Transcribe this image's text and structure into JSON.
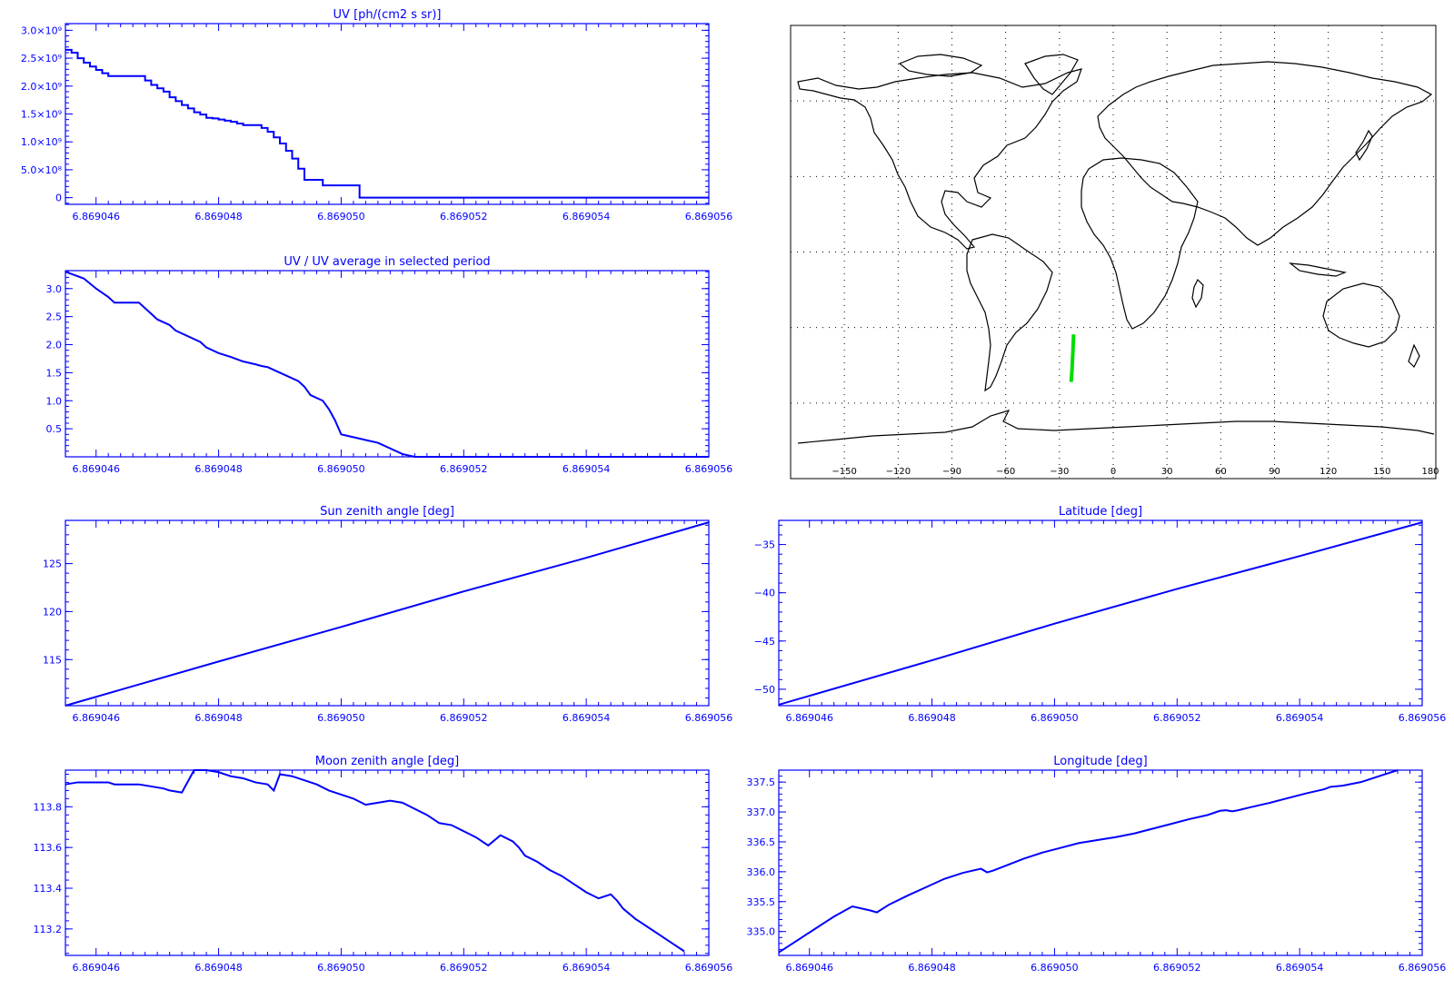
{
  "colors": {
    "axis": "#0000ff",
    "series": "#0000ff",
    "map_outline": "#000000",
    "track": "#00dd00",
    "background": "#ffffff"
  },
  "chart_data": [
    {
      "id": "uv",
      "type": "line",
      "title": "UV [ph/(cm2 s sr)]",
      "xlabel": "",
      "ylabel": "",
      "step": true,
      "xlim": [
        6.8690455,
        6.869056
      ],
      "ylim": [
        -120000000.0,
        3120000000.0
      ],
      "xticks": [
        "6.869046",
        "6.869048",
        "6.869050",
        "6.869052",
        "6.869054",
        "6.869056"
      ],
      "yticks": [
        {
          "v": 0,
          "label": "0"
        },
        {
          "v": 500000000.0,
          "label": "5.0×10⁸"
        },
        {
          "v": 1000000000.0,
          "label": "1.0×10⁹"
        },
        {
          "v": 1500000000.0,
          "label": "1.5×10⁹"
        },
        {
          "v": 2000000000.0,
          "label": "2.0×10⁹"
        },
        {
          "v": 2500000000.0,
          "label": "2.5×10⁹"
        },
        {
          "v": 3000000000.0,
          "label": "3.0×10⁹"
        }
      ],
      "series": [
        {
          "x": [
            6.8690455,
            6.8690456,
            6.8690457,
            6.8690458,
            6.8690459,
            6.869046,
            6.8690461,
            6.8690462,
            6.8690463,
            6.8690464,
            6.8690465,
            6.8690466,
            6.8690467,
            6.8690468,
            6.8690469,
            6.869047,
            6.8690471,
            6.8690472,
            6.8690473,
            6.8690474,
            6.8690475,
            6.8690476,
            6.8690477,
            6.8690478,
            6.8690479,
            6.869048,
            6.8690481,
            6.8690482,
            6.8690483,
            6.8690484,
            6.8690485,
            6.8690486,
            6.8690487,
            6.8690488,
            6.8690489,
            6.869049,
            6.8690491,
            6.8690492,
            6.8690493,
            6.8690494,
            6.8690495,
            6.8690496,
            6.8690497,
            6.8690498,
            6.8690499,
            6.86905,
            6.8690501,
            6.8690502,
            6.8690503,
            6.8690504,
            6.8690505,
            6.8690506,
            6.8690507,
            6.8690508,
            6.8690509,
            6.869051,
            6.869056
          ],
          "y": [
            2650000000.0,
            2600000000.0,
            2500000000.0,
            2420000000.0,
            2350000000.0,
            2290000000.0,
            2230000000.0,
            2180000000.0,
            2180000000.0,
            2180000000.0,
            2180000000.0,
            2180000000.0,
            2180000000.0,
            2100000000.0,
            2020000000.0,
            1960000000.0,
            1900000000.0,
            1800000000.0,
            1730000000.0,
            1660000000.0,
            1600000000.0,
            1530000000.0,
            1490000000.0,
            1430000000.0,
            1420000000.0,
            1400000000.0,
            1380000000.0,
            1360000000.0,
            1330000000.0,
            1300000000.0,
            1300000000.0,
            1300000000.0,
            1250000000.0,
            1180000000.0,
            1080000000.0,
            970000000.0,
            840000000.0,
            700000000.0,
            520000000.0,
            320000000.0,
            320000000.0,
            320000000.0,
            220000000.0,
            220000000.0,
            220000000.0,
            220000000.0,
            220000000.0,
            220000000.0,
            0.0,
            0.0,
            0.0,
            0.0,
            0.0,
            0.0,
            0.0,
            0.0,
            0.0
          ]
        }
      ]
    },
    {
      "id": "uv-ratio",
      "type": "line",
      "title": "UV / UV average in selected period",
      "xlabel": "",
      "ylabel": "",
      "xlim": [
        6.8690455,
        6.869056
      ],
      "ylim": [
        0.0,
        3.32
      ],
      "xticks": [
        "6.869046",
        "6.869048",
        "6.869050",
        "6.869052",
        "6.869054",
        "6.869056"
      ],
      "yticks": [
        {
          "v": 0.5,
          "label": "0.5"
        },
        {
          "v": 1.0,
          "label": "1.0"
        },
        {
          "v": 1.5,
          "label": "1.5"
        },
        {
          "v": 2.0,
          "label": "2.0"
        },
        {
          "v": 2.5,
          "label": "2.5"
        },
        {
          "v": 3.0,
          "label": "3.0"
        }
      ],
      "series": [
        {
          "x": [
            6.8690455,
            6.8690458,
            6.869046,
            6.8690462,
            6.8690463,
            6.8690465,
            6.8690467,
            6.8690468,
            6.8690469,
            6.869047,
            6.8690472,
            6.8690473,
            6.8690475,
            6.8690477,
            6.8690478,
            6.869048,
            6.8690482,
            6.8690484,
            6.8690486,
            6.8690487,
            6.8690488,
            6.8690489,
            6.8690491,
            6.8690493,
            6.8690494,
            6.8690495,
            6.8690497,
            6.8690498,
            6.8690499,
            6.86905,
            6.8690504,
            6.8690506,
            6.869051,
            6.8690512,
            6.869056
          ],
          "y": [
            3.3,
            3.18,
            3.0,
            2.85,
            2.75,
            2.75,
            2.75,
            2.65,
            2.55,
            2.45,
            2.35,
            2.25,
            2.15,
            2.05,
            1.95,
            1.85,
            1.78,
            1.7,
            1.65,
            1.62,
            1.6,
            1.55,
            1.45,
            1.35,
            1.25,
            1.1,
            1.0,
            0.85,
            0.65,
            0.4,
            0.3,
            0.25,
            0.05,
            0.0,
            0.0
          ]
        }
      ]
    },
    {
      "id": "sun-zenith",
      "type": "line",
      "title": "Sun zenith angle [deg]",
      "xlabel": "",
      "ylabel": "",
      "xlim": [
        6.8690455,
        6.869056
      ],
      "ylim": [
        110.2,
        129.5
      ],
      "xticks": [
        "6.869046",
        "6.869048",
        "6.869050",
        "6.869052",
        "6.869054",
        "6.869056"
      ],
      "yticks": [
        {
          "v": 115,
          "label": "115"
        },
        {
          "v": 120,
          "label": "120"
        },
        {
          "v": 125,
          "label": "125"
        }
      ],
      "series": [
        {
          "x": [
            6.8690455,
            6.869048,
            6.86905,
            6.869052,
            6.869054,
            6.869056
          ],
          "y": [
            110.2,
            114.8,
            118.4,
            122.1,
            125.6,
            129.3
          ]
        }
      ]
    },
    {
      "id": "latitude",
      "type": "line",
      "title": "Latitude [deg]",
      "xlabel": "",
      "ylabel": "",
      "xlim": [
        6.8690455,
        6.869056
      ],
      "ylim": [
        -51.7,
        -32.5
      ],
      "xticks": [
        "6.869046",
        "6.869048",
        "6.869050",
        "6.869052",
        "6.869054",
        "6.869056"
      ],
      "yticks": [
        {
          "v": -50,
          "label": "−50"
        },
        {
          "v": -45,
          "label": "−45"
        },
        {
          "v": -40,
          "label": "−40"
        },
        {
          "v": -35,
          "label": "−35"
        }
      ],
      "series": [
        {
          "x": [
            6.8690455,
            6.869048,
            6.86905,
            6.869052,
            6.869054,
            6.869056
          ],
          "y": [
            -51.6,
            -47.0,
            -43.2,
            -39.6,
            -36.2,
            -32.7
          ]
        }
      ]
    },
    {
      "id": "moon-zenith",
      "type": "line",
      "title": "Moon zenith angle [deg]",
      "xlabel": "",
      "ylabel": "",
      "xlim": [
        6.8690455,
        6.869056
      ],
      "ylim": [
        113.07,
        113.98
      ],
      "xticks": [
        "6.869046",
        "6.869048",
        "6.869050",
        "6.869052",
        "6.869054",
        "6.869056"
      ],
      "yticks": [
        {
          "v": 113.2,
          "label": "113.2"
        },
        {
          "v": 113.4,
          "label": "113.4"
        },
        {
          "v": 113.6,
          "label": "113.6"
        },
        {
          "v": 113.8,
          "label": "113.8"
        }
      ],
      "series": [
        {
          "x": [
            6.8690455,
            6.8690457,
            6.869046,
            6.8690462,
            6.8690463,
            6.8690466,
            6.8690467,
            6.8690471,
            6.8690472,
            6.8690474,
            6.8690476,
            6.8690478,
            6.869048,
            6.8690482,
            6.8690484,
            6.8690486,
            6.8690488,
            6.8690489,
            6.869049,
            6.8690492,
            6.8690494,
            6.8690496,
            6.8690498,
            6.86905,
            6.8690502,
            6.8690504,
            6.8690506,
            6.8690508,
            6.869051,
            6.8690512,
            6.8690514,
            6.8690516,
            6.8690518,
            6.869052,
            6.8690522,
            6.8690524,
            6.8690526,
            6.8690528,
            6.8690529,
            6.869053,
            6.8690532,
            6.8690534,
            6.8690536,
            6.8690538,
            6.869054,
            6.8690542,
            6.8690544,
            6.8690545,
            6.8690546,
            6.8690548,
            6.869055,
            6.8690552,
            6.8690554,
            6.8690556
          ],
          "y": [
            113.91,
            113.92,
            113.92,
            113.92,
            113.91,
            113.91,
            113.91,
            113.89,
            113.88,
            113.87,
            113.98,
            113.98,
            113.97,
            113.95,
            113.94,
            113.92,
            113.91,
            113.88,
            113.96,
            113.95,
            113.93,
            113.91,
            113.88,
            113.86,
            113.84,
            113.81,
            113.82,
            113.83,
            113.82,
            113.79,
            113.76,
            113.72,
            113.71,
            113.68,
            113.65,
            113.61,
            113.66,
            113.63,
            113.6,
            113.56,
            113.53,
            113.49,
            113.46,
            113.42,
            113.38,
            113.35,
            113.37,
            113.34,
            113.3,
            113.25,
            113.21,
            113.17,
            113.13,
            113.09
          ]
        }
      ]
    },
    {
      "id": "longitude",
      "type": "line",
      "title": "Longitude [deg]",
      "xlabel": "",
      "ylabel": "",
      "xlim": [
        6.8690455,
        6.869056
      ],
      "ylim": [
        334.6,
        337.7
      ],
      "xticks": [
        "6.869046",
        "6.869048",
        "6.869050",
        "6.869052",
        "6.869054",
        "6.869056"
      ],
      "yticks": [
        {
          "v": 335.0,
          "label": "335.0"
        },
        {
          "v": 335.5,
          "label": "335.5"
        },
        {
          "v": 336.0,
          "label": "336.0"
        },
        {
          "v": 336.5,
          "label": "336.5"
        },
        {
          "v": 337.0,
          "label": "337.0"
        },
        {
          "v": 337.5,
          "label": "337.5"
        }
      ],
      "series": [
        {
          "x": [
            6.8690455,
            6.8690458,
            6.8690461,
            6.8690464,
            6.8690467,
            6.869047,
            6.8690471,
            6.8690473,
            6.8690476,
            6.8690479,
            6.8690482,
            6.8690485,
            6.8690488,
            6.8690489,
            6.869049,
            6.8690492,
            6.8690495,
            6.8690498,
            6.8690501,
            6.8690504,
            6.8690507,
            6.869051,
            6.8690513,
            6.8690516,
            6.8690519,
            6.8690522,
            6.8690525,
            6.8690527,
            6.8690528,
            6.8690529,
            6.869053,
            6.8690532,
            6.8690535,
            6.8690538,
            6.8690541,
            6.8690544,
            6.8690545,
            6.8690547,
            6.869055,
            6.8690553,
            6.8690556
          ],
          "y": [
            334.65,
            334.85,
            335.05,
            335.25,
            335.42,
            335.35,
            335.32,
            335.45,
            335.6,
            335.74,
            335.88,
            335.98,
            336.05,
            335.99,
            336.02,
            336.1,
            336.22,
            336.32,
            336.4,
            336.48,
            336.53,
            336.58,
            336.64,
            336.72,
            336.8,
            336.88,
            336.95,
            337.02,
            337.03,
            337.01,
            337.03,
            337.08,
            337.15,
            337.23,
            337.31,
            337.38,
            337.42,
            337.44,
            337.5,
            337.6,
            337.7
          ]
        }
      ]
    },
    {
      "id": "world-map",
      "type": "scatter",
      "title": "",
      "xlabel": "",
      "ylabel": "",
      "xlim": [
        -180,
        180
      ],
      "ylim": [
        -90,
        90
      ],
      "grid": true,
      "xticks": [
        "−150",
        "−120",
        "−90",
        "−60",
        "−30",
        "0",
        "30",
        "60",
        "90",
        "120",
        "150",
        "180"
      ],
      "series": [
        {
          "lon": [
            -22.1,
            -22.5,
            -23.0,
            -23.5
          ],
          "lat": [
            -32.7,
            -39.6,
            -47.0,
            -51.6
          ]
        }
      ]
    }
  ]
}
